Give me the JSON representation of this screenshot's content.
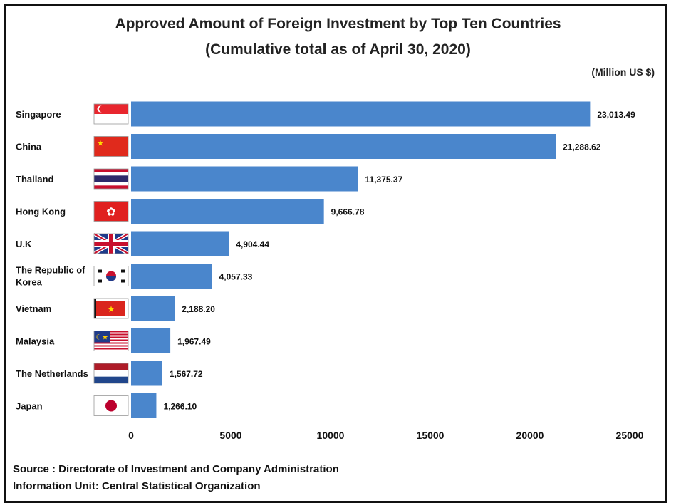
{
  "chart_data": {
    "type": "bar",
    "orientation": "horizontal",
    "title": "Approved Amount of Foreign Investment by Top Ten Countries",
    "subtitle": "(Cumulative total as of April 30, 2020)",
    "unit_label": "(Million US $)",
    "categories": [
      "Singapore",
      "China",
      "Thailand",
      "Hong Kong",
      "U.K",
      "The Republic of Korea",
      "Vietnam",
      "Malaysia",
      "The Netherlands",
      "Japan"
    ],
    "category_lines": [
      [
        "Singapore"
      ],
      [
        "China"
      ],
      [
        "Thailand"
      ],
      [
        "Hong Kong"
      ],
      [
        "U.K"
      ],
      [
        "The Republic of",
        "Korea"
      ],
      [
        "Vietnam"
      ],
      [
        "Malaysia"
      ],
      [
        "The Netherlands"
      ],
      [
        "Japan"
      ]
    ],
    "values": [
      23013.49,
      21288.62,
      11375.37,
      9666.78,
      4904.44,
      4057.33,
      2188.2,
      1967.49,
      1567.72,
      1266.1
    ],
    "value_labels": [
      "23,013.49",
      "21,288.62",
      "11,375.37",
      "9,666.78",
      "4,904.44",
      "4,057.33",
      "2,188.20",
      "1,967.49",
      "1,567.72",
      "1,266.10"
    ],
    "xlim": [
      0,
      25000
    ],
    "x_ticks": [
      0,
      5000,
      10000,
      15000,
      20000,
      25000
    ],
    "x_tick_labels": [
      "0",
      "5000",
      "10000",
      "15000",
      "20000",
      "25000"
    ],
    "bar_color": "#4a86cc",
    "grid": false,
    "legend": "none",
    "flag_icons": [
      "singapore-flag-icon",
      "china-flag-icon",
      "thailand-flag-icon",
      "hong-kong-flag-icon",
      "uk-flag-icon",
      "korea-flag-icon",
      "vietnam-flag-icon",
      "malaysia-flag-icon",
      "netherlands-flag-icon",
      "japan-flag-icon"
    ]
  },
  "footer": {
    "source": "Source : Directorate of Investment and Company Administration",
    "info_unit": "Information Unit:  Central Statistical Organization"
  }
}
